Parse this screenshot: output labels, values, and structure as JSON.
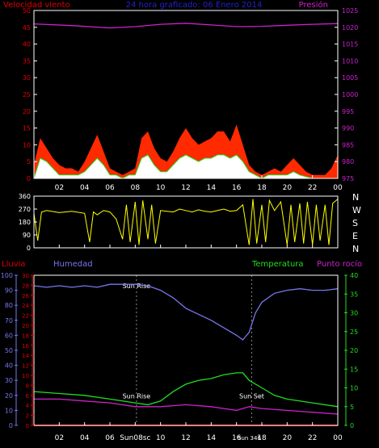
{
  "colors": {
    "wind": "#e00000",
    "gust_fill": "#ff2a00",
    "avg_fill": "#ffffff",
    "pressure": "#cc22cc",
    "title": "#2222cc",
    "direction": "#ffff00",
    "rain": "#dd0000",
    "humidity": "#7777ee",
    "temperature": "#22dd22",
    "dewpoint": "#cc22cc",
    "axis": "#ffffff"
  },
  "chart_data": [
    {
      "type": "area",
      "title": "24 hora graficado: 06 Enero 2014",
      "ylabel_left": "Velocidad viento",
      "ylabel_right": "Presión",
      "x_tick_labels": [
        "02",
        "04",
        "06",
        "08",
        "10",
        "12",
        "14",
        "16",
        "18",
        "20",
        "22",
        "00"
      ],
      "y_left_ticks": [
        0,
        5,
        10,
        15,
        20,
        25,
        30,
        35,
        40,
        45,
        50
      ],
      "y_left_range": [
        0,
        50
      ],
      "y_right_ticks": [
        975,
        980,
        985,
        990,
        995,
        1000,
        1005,
        1010,
        1015,
        1020,
        1025
      ],
      "y_right_range": [
        975,
        1025
      ],
      "x_range_hours": [
        0,
        24
      ],
      "wind_gust": [
        [
          0,
          4
        ],
        [
          0.5,
          12
        ],
        [
          1,
          9
        ],
        [
          1.5,
          6
        ],
        [
          2,
          4
        ],
        [
          2.5,
          3
        ],
        [
          3,
          3
        ],
        [
          3.5,
          2
        ],
        [
          4,
          5
        ],
        [
          4.5,
          9
        ],
        [
          5,
          13
        ],
        [
          5.5,
          8
        ],
        [
          6,
          3
        ],
        [
          6.5,
          2
        ],
        [
          7,
          1
        ],
        [
          7.5,
          2
        ],
        [
          8,
          3
        ],
        [
          8.5,
          12
        ],
        [
          9,
          14
        ],
        [
          9.5,
          9
        ],
        [
          10,
          6
        ],
        [
          10.5,
          5
        ],
        [
          11,
          8
        ],
        [
          11.5,
          12
        ],
        [
          12,
          15
        ],
        [
          12.5,
          12
        ],
        [
          13,
          10
        ],
        [
          13.5,
          11
        ],
        [
          14,
          12
        ],
        [
          14.5,
          14
        ],
        [
          15,
          14
        ],
        [
          15.5,
          11
        ],
        [
          16,
          16
        ],
        [
          16.5,
          10
        ],
        [
          17,
          4
        ],
        [
          17.5,
          2
        ],
        [
          18,
          1
        ],
        [
          18.5,
          2
        ],
        [
          19,
          3
        ],
        [
          19.5,
          2
        ],
        [
          20,
          4
        ],
        [
          20.5,
          6
        ],
        [
          21,
          4
        ],
        [
          21.5,
          2
        ],
        [
          22,
          1
        ],
        [
          23,
          1
        ],
        [
          23.5,
          3
        ],
        [
          24,
          7
        ]
      ],
      "wind_speed": [
        [
          0,
          0
        ],
        [
          0.5,
          6
        ],
        [
          1,
          5
        ],
        [
          1.5,
          3
        ],
        [
          2,
          1
        ],
        [
          2.5,
          1
        ],
        [
          3,
          1
        ],
        [
          3.5,
          1
        ],
        [
          4,
          2
        ],
        [
          4.5,
          4
        ],
        [
          5,
          6
        ],
        [
          5.5,
          4
        ],
        [
          6,
          1
        ],
        [
          6.5,
          1
        ],
        [
          7,
          0
        ],
        [
          7.5,
          1
        ],
        [
          8,
          1
        ],
        [
          8.5,
          6
        ],
        [
          9,
          7
        ],
        [
          9.5,
          4
        ],
        [
          10,
          2
        ],
        [
          10.5,
          2
        ],
        [
          11,
          4
        ],
        [
          11.5,
          6
        ],
        [
          12,
          7
        ],
        [
          12.5,
          6
        ],
        [
          13,
          5
        ],
        [
          13.5,
          6
        ],
        [
          14,
          6
        ],
        [
          14.5,
          7
        ],
        [
          15,
          7
        ],
        [
          15.5,
          6
        ],
        [
          16,
          7
        ],
        [
          16.5,
          5
        ],
        [
          17,
          2
        ],
        [
          17.5,
          1
        ],
        [
          18,
          0
        ],
        [
          18.5,
          1
        ],
        [
          19,
          1
        ],
        [
          19.5,
          1
        ],
        [
          20,
          1
        ],
        [
          20.5,
          2
        ],
        [
          21,
          1
        ],
        [
          22,
          0
        ],
        [
          24,
          0
        ]
      ],
      "pressure": [
        [
          0,
          1021
        ],
        [
          3,
          1020.5
        ],
        [
          6,
          1019.8
        ],
        [
          8,
          1020.2
        ],
        [
          10,
          1020.9
        ],
        [
          12,
          1021.2
        ],
        [
          14,
          1020.7
        ],
        [
          16,
          1020.2
        ],
        [
          18,
          1020.3
        ],
        [
          20,
          1020.6
        ],
        [
          22,
          1020.9
        ],
        [
          24,
          1021.1
        ]
      ]
    },
    {
      "type": "scatter",
      "y_ticks": [
        0,
        90,
        180,
        270,
        360
      ],
      "y_range": [
        0,
        360
      ],
      "compass_labels": [
        "N",
        "W",
        "S",
        "E",
        "N"
      ],
      "x_tick_labels": [
        "02",
        "04",
        "06",
        "08",
        "10",
        "12",
        "14",
        "16",
        "18",
        "20",
        "22",
        "00"
      ],
      "series": [
        {
          "name": "direction",
          "values": [
            [
              0,
              240
            ],
            [
              0.3,
              50
            ],
            [
              0.6,
              250
            ],
            [
              1,
              260
            ],
            [
              2,
              245
            ],
            [
              3,
              255
            ],
            [
              4,
              240
            ],
            [
              4.4,
              40
            ],
            [
              4.7,
              250
            ],
            [
              5,
              230
            ],
            [
              5.5,
              260
            ],
            [
              6,
              250
            ],
            [
              6.5,
              200
            ],
            [
              7,
              60
            ],
            [
              7.3,
              300
            ],
            [
              7.6,
              40
            ],
            [
              8,
              320
            ],
            [
              8.3,
              20
            ],
            [
              8.6,
              330
            ],
            [
              9,
              60
            ],
            [
              9.3,
              300
            ],
            [
              9.6,
              30
            ],
            [
              10,
              260
            ],
            [
              10.5,
              255
            ],
            [
              11,
              250
            ],
            [
              11.5,
              270
            ],
            [
              12,
              260
            ],
            [
              12.5,
              250
            ],
            [
              13,
              265
            ],
            [
              13.5,
              255
            ],
            [
              14,
              250
            ],
            [
              14.5,
              260
            ],
            [
              15,
              270
            ],
            [
              15.5,
              255
            ],
            [
              16,
              260
            ],
            [
              16.5,
              300
            ],
            [
              17,
              20
            ],
            [
              17.3,
              340
            ],
            [
              17.6,
              30
            ],
            [
              18,
              300
            ],
            [
              18.3,
              40
            ],
            [
              18.6,
              330
            ],
            [
              19,
              260
            ],
            [
              19.5,
              320
            ],
            [
              20,
              20
            ],
            [
              20.3,
              300
            ],
            [
              20.6,
              40
            ],
            [
              21,
              310
            ],
            [
              21.3,
              30
            ],
            [
              21.6,
              320
            ],
            [
              22,
              20
            ],
            [
              22.3,
              300
            ],
            [
              22.6,
              50
            ],
            [
              23,
              300
            ],
            [
              23.3,
              20
            ],
            [
              23.6,
              310
            ],
            [
              24,
              340
            ]
          ]
        }
      ]
    },
    {
      "type": "line",
      "ylabel_rain": "Lluvia",
      "ylabel_humidity": "Humedad",
      "ylabel_temperature": "Temperatura",
      "ylabel_dewpoint": "Punto rocío",
      "y_humidity_ticks": [
        0,
        10,
        20,
        30,
        40,
        50,
        60,
        70,
        80,
        90,
        100
      ],
      "y_humidity_range": [
        0,
        100
      ],
      "y_rain_ticks": [
        0,
        2,
        4,
        6,
        8,
        10,
        12,
        14,
        16,
        18,
        20,
        22,
        24,
        26,
        28,
        30
      ],
      "y_rain_range": [
        0,
        30
      ],
      "y_temp_ticks": [
        0,
        5,
        10,
        15,
        20,
        25,
        30,
        35,
        40
      ],
      "y_temp_range": [
        0,
        40
      ],
      "sun_rise_label": "Sun Rise",
      "sun_set_label": "Sun Set",
      "sun_rise_time_label": "Sun08sc",
      "sun_set_time_label": "Sun 346",
      "sun_rise_hour": 8.1,
      "sun_set_hour": 17.2,
      "x_tick_labels": [
        "02",
        "04",
        "06",
        "08",
        "10",
        "12",
        "14",
        "16",
        "18",
        "20",
        "22",
        "00"
      ],
      "series": [
        {
          "name": "Humedad",
          "values": [
            [
              0,
              93
            ],
            [
              1,
              92
            ],
            [
              2,
              93
            ],
            [
              3,
              92
            ],
            [
              4,
              93
            ],
            [
              5,
              92
            ],
            [
              6,
              94
            ],
            [
              7,
              94
            ],
            [
              8,
              94
            ],
            [
              9,
              93
            ],
            [
              10,
              90
            ],
            [
              11,
              85
            ],
            [
              12,
              78
            ],
            [
              13,
              74
            ],
            [
              14,
              70
            ],
            [
              15,
              65
            ],
            [
              16,
              60
            ],
            [
              16.5,
              57
            ],
            [
              17,
              62
            ],
            [
              17.5,
              75
            ],
            [
              18,
              82
            ],
            [
              19,
              88
            ],
            [
              20,
              90
            ],
            [
              21,
              91
            ],
            [
              22,
              90
            ],
            [
              23,
              90
            ],
            [
              24,
              91
            ]
          ]
        },
        {
          "name": "Temperatura",
          "values": [
            [
              0,
              9
            ],
            [
              2,
              8.5
            ],
            [
              4,
              8
            ],
            [
              6,
              7
            ],
            [
              8,
              6
            ],
            [
              9,
              5.5
            ],
            [
              10,
              6.5
            ],
            [
              11,
              9
            ],
            [
              12,
              11
            ],
            [
              13,
              12
            ],
            [
              14,
              12.5
            ],
            [
              15,
              13.5
            ],
            [
              16,
              14
            ],
            [
              16.5,
              14
            ],
            [
              17,
              12
            ],
            [
              18,
              10
            ],
            [
              19,
              8
            ],
            [
              20,
              7
            ],
            [
              22,
              6
            ],
            [
              24,
              5
            ]
          ]
        },
        {
          "name": "Punto rocío",
          "values": [
            [
              0,
              7
            ],
            [
              2,
              7
            ],
            [
              4,
              6.5
            ],
            [
              6,
              6
            ],
            [
              8,
              5
            ],
            [
              10,
              5
            ],
            [
              12,
              5.5
            ],
            [
              14,
              5
            ],
            [
              15,
              4.5
            ],
            [
              16,
              4
            ],
            [
              17,
              5
            ],
            [
              18,
              4.5
            ],
            [
              20,
              4
            ],
            [
              22,
              3.5
            ],
            [
              24,
              3
            ]
          ]
        },
        {
          "name": "Lluvia",
          "values": [
            [
              0,
              0
            ],
            [
              24,
              0
            ]
          ]
        }
      ]
    }
  ]
}
